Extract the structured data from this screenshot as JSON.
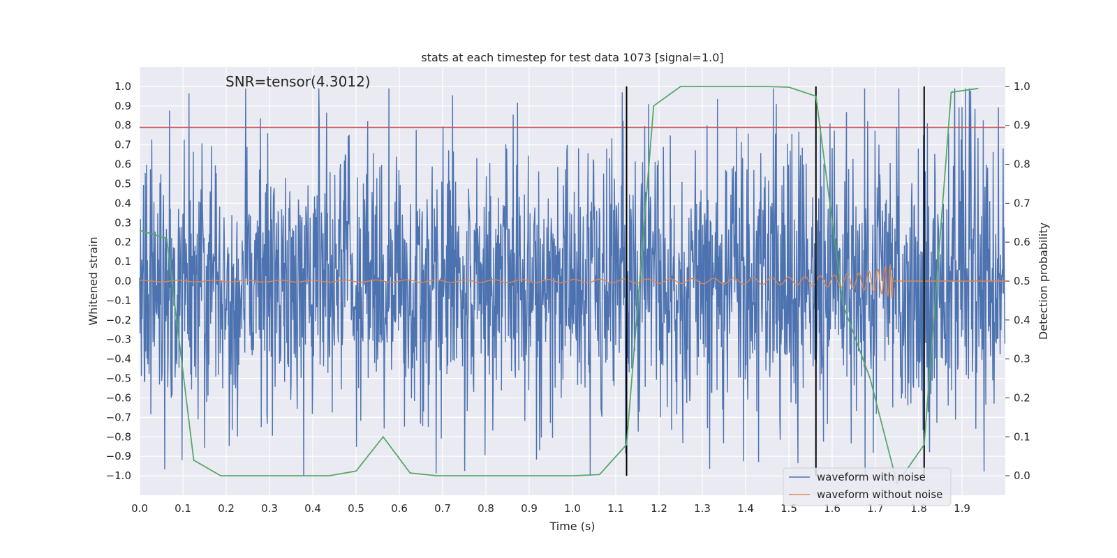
{
  "chart_data": {
    "type": "line",
    "title": "stats at each timestep for test data 1073 [signal=1.0]",
    "xlabel": "Time (s)",
    "ylabel_left": "Whitened strain",
    "ylabel_right": "Detection probability",
    "annotation": "SNR=tensor(4.3012)",
    "xlim": [
      0.0,
      2.0
    ],
    "ylim_left": [
      -1.1,
      1.1
    ],
    "ylim_right": [
      -0.05,
      1.05
    ],
    "x_ticks": [
      "0.0",
      "0.1",
      "0.2",
      "0.3",
      "0.4",
      "0.5",
      "0.6",
      "0.7",
      "0.8",
      "0.9",
      "1.0",
      "1.1",
      "1.2",
      "1.3",
      "1.4",
      "1.5",
      "1.6",
      "1.7",
      "1.8",
      "1.9"
    ],
    "y_left_ticks": [
      "1.0",
      "0.9",
      "0.8",
      "0.7",
      "0.6",
      "0.5",
      "0.4",
      "0.3",
      "0.2",
      "0.1",
      "0.0",
      "−0.1",
      "−0.2",
      "−0.3",
      "−0.4",
      "−0.5",
      "−0.6",
      "−0.7",
      "−0.8",
      "−0.9",
      "−1.0"
    ],
    "y_right_ticks": [
      "1.0",
      "0.9",
      "0.8",
      "0.7",
      "0.6",
      "0.5",
      "0.4",
      "0.3",
      "0.2",
      "0.1",
      "0.0"
    ],
    "threshold": 0.79,
    "vlines": [
      1.125,
      1.5625,
      1.8125
    ],
    "vline_range": [
      -1.0,
      1.0
    ],
    "series": [
      {
        "name": "waveform with noise",
        "color": "#4c72b0",
        "axis": "left",
        "kind": "noise",
        "amplitude": 0.35
      },
      {
        "name": "waveform without noise",
        "color": "#dd8452",
        "axis": "left",
        "kind": "chirp",
        "merger_time": 1.74
      },
      {
        "name": "Detection probability",
        "color": "#55a868",
        "axis": "right",
        "x": [
          0.0,
          0.0625,
          0.125,
          0.1875,
          0.25,
          0.3125,
          0.375,
          0.4375,
          0.5,
          0.5625,
          0.625,
          0.6875,
          0.75,
          0.8125,
          0.875,
          0.9375,
          1.0,
          1.0625,
          1.125,
          1.1875,
          1.25,
          1.3125,
          1.375,
          1.4375,
          1.5,
          1.5625,
          1.625,
          1.6875,
          1.75,
          1.8125,
          1.875,
          1.9375
        ],
        "values": [
          0.63,
          0.61,
          0.04,
          0.0,
          0.0,
          0.0,
          0.0,
          0.0,
          0.012,
          0.1,
          0.007,
          0.0,
          0.0,
          0.0,
          0.0,
          0.0,
          0.0,
          0.003,
          0.08,
          0.95,
          1.0,
          1.0,
          1.0,
          1.0,
          0.998,
          0.975,
          0.44,
          0.25,
          -0.02,
          0.08,
          0.985,
          0.995
        ]
      }
    ],
    "threshold_color": "#c44e52",
    "vline_color": "#000000",
    "legend": {
      "location": "lower-right",
      "entries": [
        "waveform with noise",
        "waveform without noise"
      ]
    }
  }
}
